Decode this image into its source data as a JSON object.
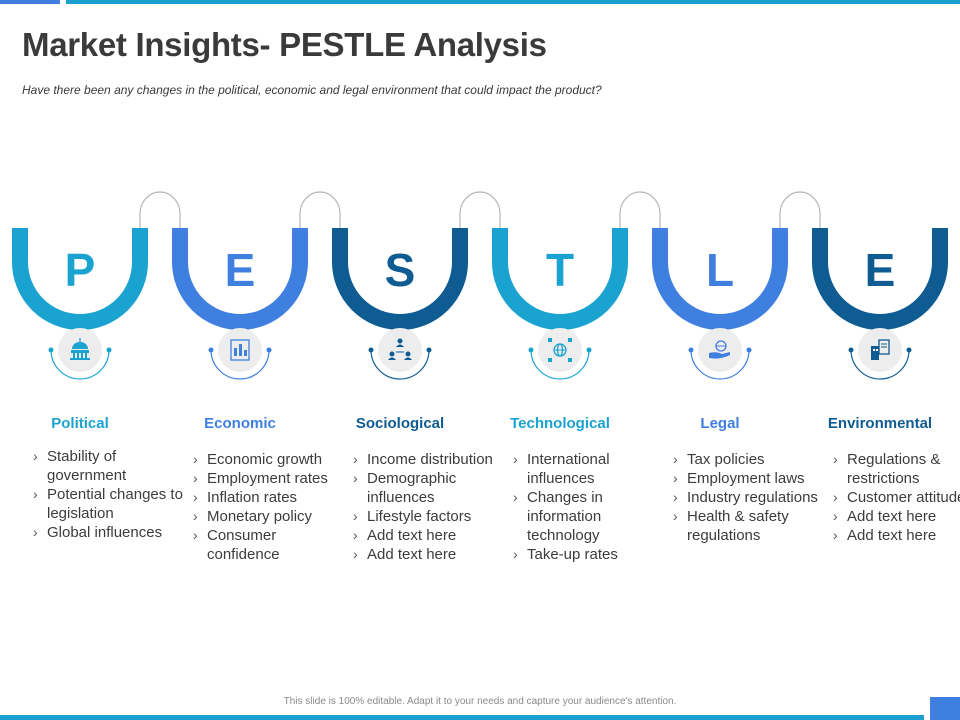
{
  "slide": {
    "title": "Market Insights- PESTLE Analysis",
    "subtitle": "Have there been any changes in the political, economic and legal environment that could impact the product?",
    "footer": "This slide is 100% editable. Adapt it to your needs and capture your audience's attention."
  },
  "colors": {
    "accent_cyan": "#1a9fcf",
    "accent_blue": "#3f7fe0",
    "accent_navy": "#0f5c93",
    "title_text": "#3a3a3a"
  },
  "pestle": [
    {
      "letter": "P",
      "title": "Political",
      "color": "#1aa3d1",
      "icon": "capitol-icon",
      "items": [
        "Stability of government",
        "Potential changes to legislation",
        "Global influences"
      ]
    },
    {
      "letter": "E",
      "title": "Economic",
      "color": "#3f7fe0",
      "icon": "chart-document-icon",
      "items": [
        "Economic growth",
        "Employment rates",
        "Inflation rates",
        "Monetary policy",
        "Consumer confidence"
      ]
    },
    {
      "letter": "S",
      "title": "Sociological",
      "color": "#0f5c93",
      "icon": "people-network-icon",
      "items": [
        "Income distribution",
        "Demographic influences",
        "Lifestyle factors",
        "Add text here",
        "Add text here"
      ]
    },
    {
      "letter": "T",
      "title": "Technological",
      "color": "#1aa3d1",
      "icon": "globe-circuit-icon",
      "items": [
        "International influences",
        "Changes in information technology",
        "Take-up rates"
      ]
    },
    {
      "letter": "L",
      "title": "Legal",
      "color": "#3f7fe0",
      "icon": "hand-globe-icon",
      "items": [
        "Tax policies",
        "Employment laws",
        "Industry regulations",
        "Health & safety regulations"
      ]
    },
    {
      "letter": "E",
      "title": "Environmental",
      "color": "#0f5c93",
      "icon": "building-document-icon",
      "items": [
        "Regulations & restrictions",
        "Customer attitudes",
        "Add text here",
        "Add text here"
      ]
    }
  ]
}
